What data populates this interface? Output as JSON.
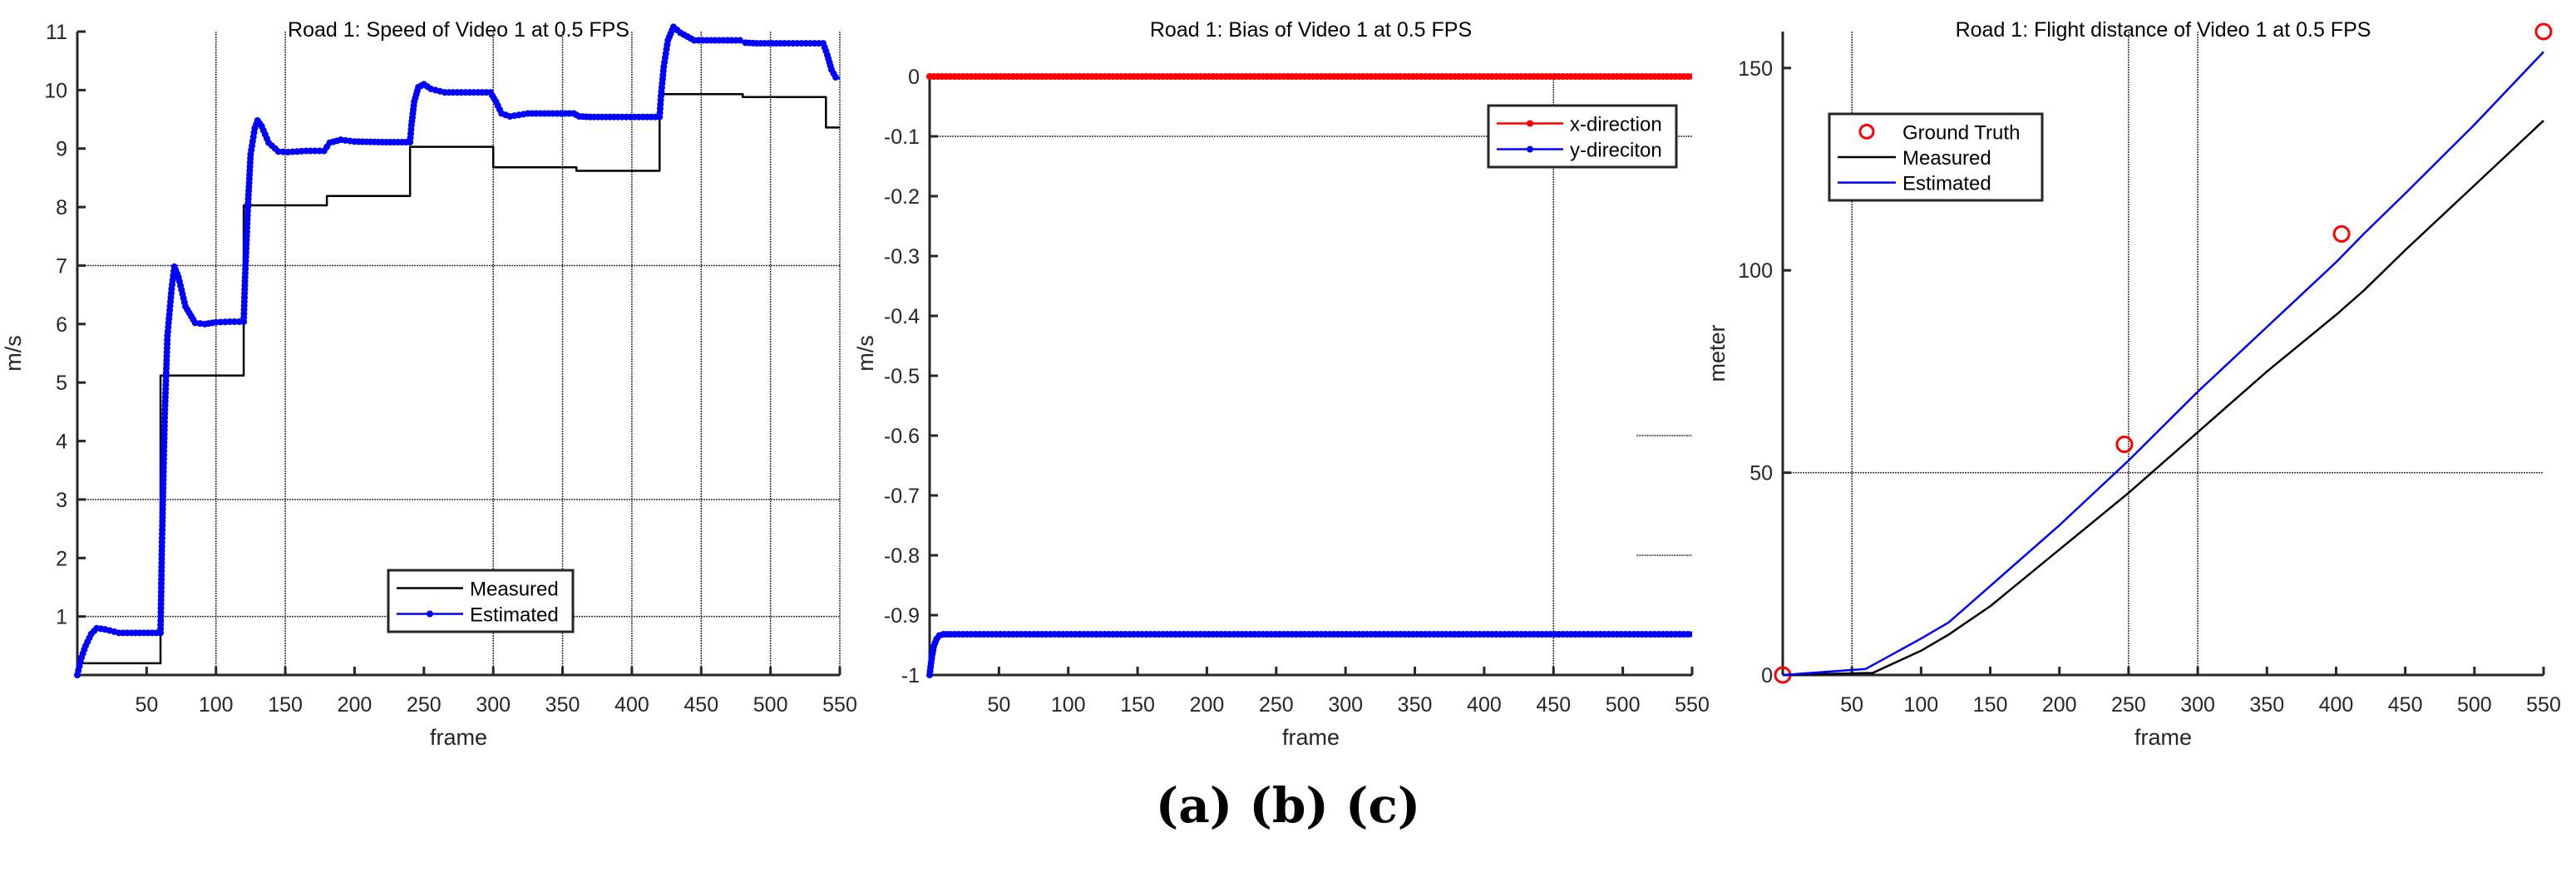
{
  "caption": "(a) (b) (c)",
  "chart_data": [
    {
      "id": "a",
      "type": "line",
      "title": "Road 1: Speed of Video 1 at 0.5 FPS",
      "xlabel": "frame",
      "ylabel": "m/s",
      "xlim": [
        0,
        550
      ],
      "ylim": [
        0,
        11
      ],
      "xticks": [
        50,
        100,
        150,
        200,
        250,
        300,
        350,
        400,
        450,
        500,
        550
      ],
      "yticks": [
        1,
        2,
        3,
        4,
        5,
        6,
        7,
        8,
        9,
        10,
        11
      ],
      "grid_x": [
        100,
        150,
        300,
        350,
        400,
        450,
        500,
        550
      ],
      "grid_y": [
        1,
        3,
        7
      ],
      "legend": {
        "position": "lower-center",
        "entries": [
          "Measured",
          "Estimated"
        ]
      },
      "series": [
        {
          "name": "Measured",
          "color": "#000000",
          "marker": "none",
          "x": [
            0,
            60,
            60,
            120,
            120,
            180,
            180,
            240,
            240,
            300,
            300,
            360,
            360,
            420,
            420,
            480,
            480,
            540,
            540,
            550
          ],
          "y": [
            0.2,
            0.2,
            5.12,
            5.12,
            8.03,
            8.03,
            8.19,
            8.19,
            9.03,
            9.03,
            8.68,
            8.68,
            8.62,
            8.62,
            9.93,
            9.93,
            9.88,
            9.88,
            9.36,
            9.36
          ]
        },
        {
          "name": "Estimated",
          "color": "#0000ff",
          "marker": "dot",
          "x": [
            0,
            3,
            6,
            10,
            14,
            20,
            30,
            45,
            60,
            61,
            63,
            65,
            68,
            70,
            73,
            78,
            85,
            92,
            100,
            110,
            120,
            121,
            123,
            125,
            128,
            130,
            133,
            138,
            145,
            152,
            165,
            178,
            182,
            190,
            200,
            220,
            240,
            241,
            243,
            246,
            250,
            255,
            265,
            280,
            298,
            302,
            306,
            312,
            325,
            340,
            358,
            362,
            370,
            390,
            420,
            421,
            423,
            426,
            430,
            435,
            445,
            460,
            478,
            482,
            490,
            510,
            538,
            541,
            544,
            547,
            550
          ],
          "y": [
            0.0,
            0.3,
            0.5,
            0.7,
            0.8,
            0.78,
            0.72,
            0.72,
            0.72,
            2.2,
            4.4,
            5.8,
            6.6,
            6.98,
            6.8,
            6.3,
            6.02,
            6.0,
            6.03,
            6.04,
            6.04,
            6.8,
            8.0,
            8.9,
            9.35,
            9.48,
            9.38,
            9.1,
            8.95,
            8.94,
            8.96,
            8.96,
            9.1,
            9.15,
            9.12,
            9.11,
            9.11,
            9.4,
            9.8,
            10.05,
            10.1,
            10.02,
            9.96,
            9.96,
            9.96,
            9.8,
            9.6,
            9.55,
            9.6,
            9.6,
            9.6,
            9.55,
            9.54,
            9.54,
            9.54,
            9.9,
            10.4,
            10.85,
            11.08,
            10.98,
            10.85,
            10.85,
            10.85,
            10.81,
            10.8,
            10.8,
            10.8,
            10.6,
            10.35,
            10.22,
            10.2
          ]
        }
      ]
    },
    {
      "id": "b",
      "type": "line",
      "title": "Road 1: Bias of Video 1 at 0.5 FPS",
      "xlabel": "frame",
      "ylabel": "m/s",
      "xlim": [
        0,
        550
      ],
      "ylim": [
        -1,
        0
      ],
      "xticks": [
        50,
        100,
        150,
        200,
        250,
        300,
        350,
        400,
        450,
        500,
        550
      ],
      "yticks": [
        0,
        -0.1,
        -0.2,
        -0.3,
        -0.4,
        -0.5,
        -0.6,
        -0.7,
        -0.8,
        -0.9,
        -1
      ],
      "grid_x": [
        450
      ],
      "grid_y": [
        -0.1
      ],
      "grid_fragments": [
        {
          "y": -0.6,
          "x": [
            510,
            550
          ]
        },
        {
          "y": -0.8,
          "x": [
            510,
            550
          ]
        }
      ],
      "legend": {
        "position": "upper-right",
        "entries": [
          "x-direction",
          "y-direciton"
        ]
      },
      "series": [
        {
          "name": "x-direction",
          "color": "#ff0000",
          "marker": "dot",
          "x": [
            0,
            550
          ],
          "y": [
            0,
            0
          ]
        },
        {
          "name": "y-direciton",
          "color": "#0000ff",
          "marker": "dot",
          "x": [
            0,
            1,
            2,
            3,
            5,
            7,
            10,
            15,
            550
          ],
          "y": [
            -1.0,
            -0.98,
            -0.965,
            -0.952,
            -0.94,
            -0.934,
            -0.932,
            -0.932,
            -0.932
          ]
        }
      ]
    },
    {
      "id": "c",
      "type": "line",
      "title": "Road 1: Flight distance of Video 1 at 0.5 FPS",
      "xlabel": "frame",
      "ylabel": "meter",
      "xlim": [
        0,
        550
      ],
      "ylim": [
        0,
        159
      ],
      "xticks": [
        50,
        100,
        150,
        200,
        250,
        300,
        350,
        400,
        450,
        500,
        550
      ],
      "yticks": [
        0,
        50,
        100,
        150
      ],
      "grid_x": [
        50,
        250,
        300
      ],
      "grid_y": [
        50
      ],
      "legend": {
        "position": "upper-left",
        "entries": [
          "Ground Truth",
          "Measured",
          "Estimated"
        ]
      },
      "series": [
        {
          "name": "Ground Truth",
          "color": "#ff0000",
          "marker": "circle",
          "line": false,
          "x": [
            0,
            247,
            404,
            550
          ],
          "y": [
            0,
            57,
            109,
            159
          ]
        },
        {
          "name": "Measured",
          "color": "#000000",
          "marker": "none",
          "x": [
            0,
            60,
            65,
            100,
            120,
            150,
            200,
            250,
            300,
            350,
            400,
            420,
            450,
            500,
            550
          ],
          "y": [
            0,
            0.5,
            0.5,
            6,
            10,
            17,
            31,
            45,
            60,
            75,
            89,
            95,
            105,
            121,
            137
          ]
        },
        {
          "name": "Estimated",
          "color": "#0000ff",
          "marker": "none",
          "x": [
            0,
            60,
            100,
            120,
            150,
            200,
            250,
            300,
            350,
            400,
            420,
            450,
            500,
            550
          ],
          "y": [
            0,
            1.5,
            9,
            13,
            22,
            37,
            53,
            70,
            86,
            102,
            109,
            119,
            136,
            154
          ]
        }
      ]
    }
  ]
}
